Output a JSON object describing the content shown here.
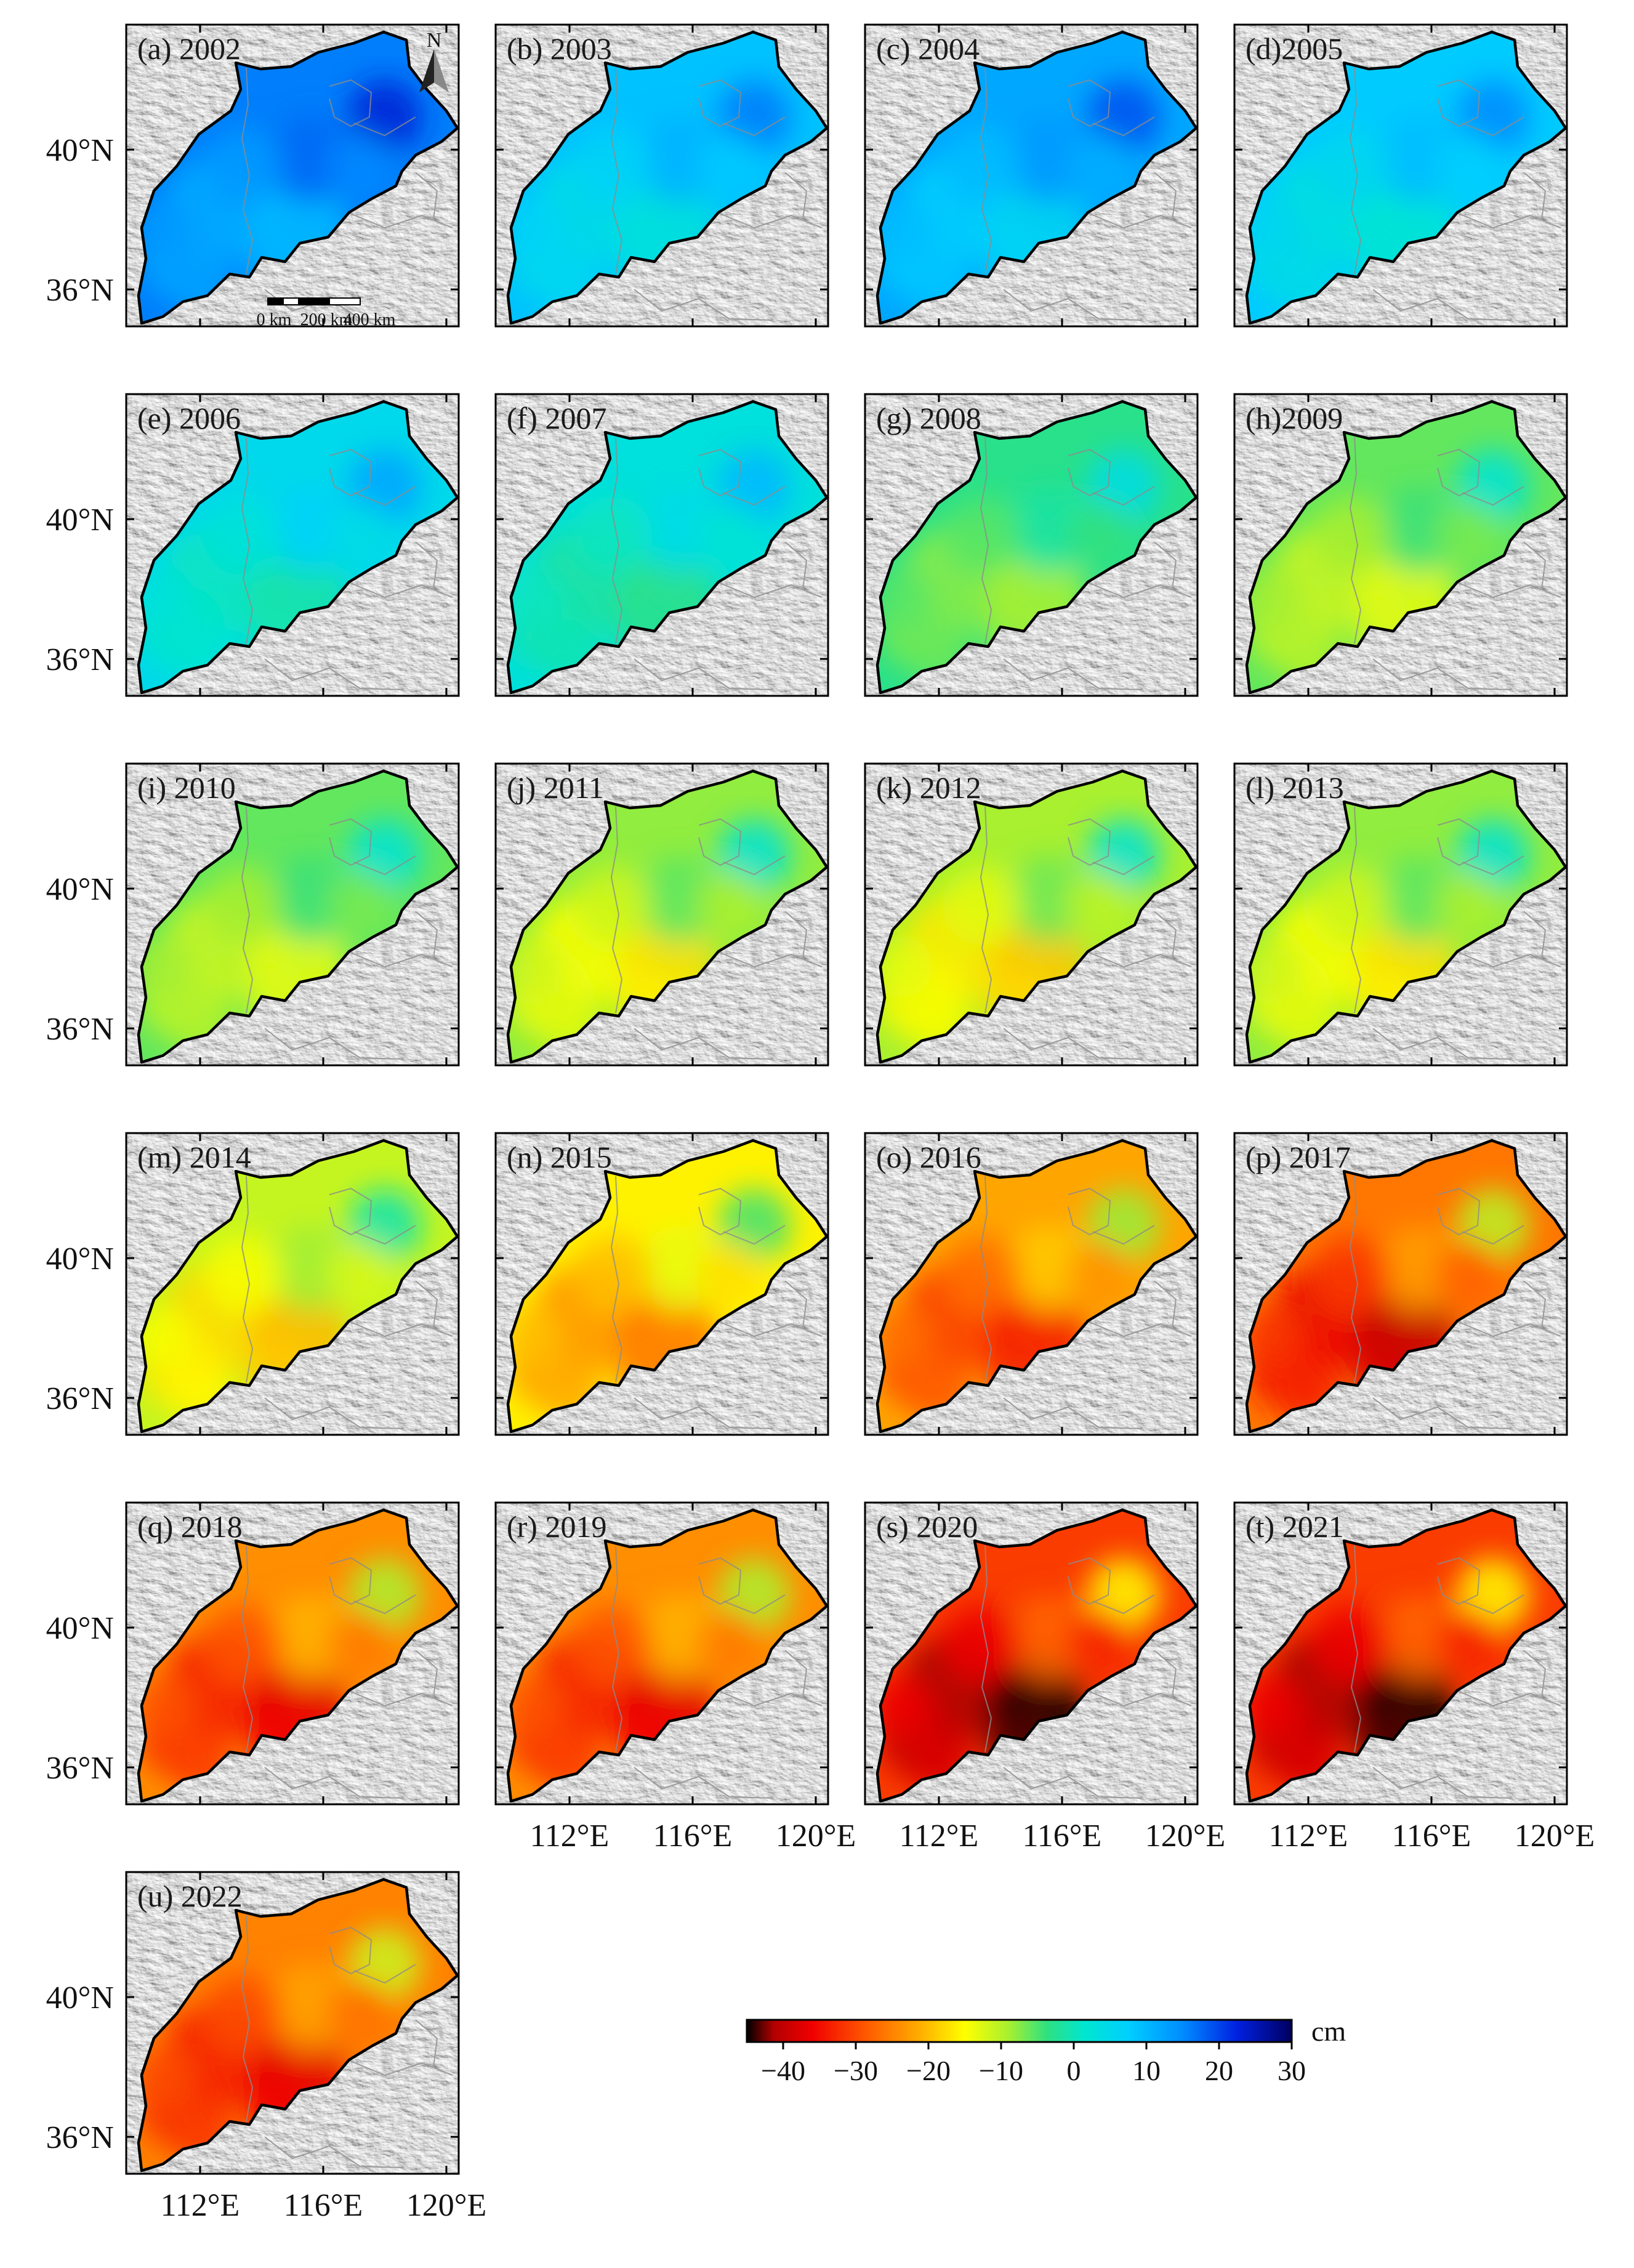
{
  "figure": {
    "panels": [
      {
        "label": "(a) 2002",
        "year": 2002,
        "mean_cm": 16,
        "warm_spots": 0
      },
      {
        "label": "(b) 2003",
        "year": 2003,
        "mean_cm": 9,
        "warm_spots": 0
      },
      {
        "label": "(c) 2004",
        "year": 2004,
        "mean_cm": 12,
        "warm_spots": 0
      },
      {
        "label": "(d)2005",
        "year": 2005,
        "mean_cm": 8,
        "warm_spots": 0
      },
      {
        "label": "(e) 2006",
        "year": 2006,
        "mean_cm": 5,
        "warm_spots": 0
      },
      {
        "label": "(f) 2007",
        "year": 2007,
        "mean_cm": 3,
        "warm_spots": 0
      },
      {
        "label": "(g) 2008",
        "year": 2008,
        "mean_cm": -3,
        "warm_spots": 0
      },
      {
        "label": "(h)2009",
        "year": 2009,
        "mean_cm": -6,
        "warm_spots": 0.1
      },
      {
        "label": "(i) 2010",
        "year": 2010,
        "mean_cm": -6,
        "warm_spots": 0.1
      },
      {
        "label": "(j) 2011",
        "year": 2011,
        "mean_cm": -8,
        "warm_spots": 0.3
      },
      {
        "label": "(k) 2012",
        "year": 2012,
        "mean_cm": -9,
        "warm_spots": 0.4
      },
      {
        "label": "(l) 2013",
        "year": 2013,
        "mean_cm": -8,
        "warm_spots": 0.3
      },
      {
        "label": "(m) 2014",
        "year": 2014,
        "mean_cm": -11,
        "warm_spots": 0.3
      },
      {
        "label": "(n) 2015",
        "year": 2015,
        "mean_cm": -16,
        "warm_spots": 0.4
      },
      {
        "label": "(o) 2016",
        "year": 2016,
        "mean_cm": -22,
        "warm_spots": 0.6
      },
      {
        "label": "(p) 2017",
        "year": 2017,
        "mean_cm": -26,
        "warm_spots": 0.8
      },
      {
        "label": "(q) 2018",
        "year": 2018,
        "mean_cm": -24,
        "warm_spots": 0.7
      },
      {
        "label": "(r) 2019",
        "year": 2019,
        "mean_cm": -24,
        "warm_spots": 0.7
      },
      {
        "label": "(s) 2020",
        "year": 2020,
        "mean_cm": -31,
        "warm_spots": 0.8
      },
      {
        "label": "(t) 2021",
        "year": 2021,
        "mean_cm": -31,
        "warm_spots": 0.8
      },
      {
        "label": "(u) 2022",
        "year": 2022,
        "mean_cm": -25,
        "warm_spots": 0.6
      }
    ],
    "lat_labels": [
      "40°N",
      "36°N"
    ],
    "lon_labels": [
      "112°E",
      "116°E",
      "120°E"
    ],
    "north_arrow": "N",
    "scale_bar": {
      "labels": [
        "0 km",
        "200 km",
        "400 km"
      ]
    },
    "colorbar": {
      "unit": "cm",
      "min": -45,
      "max": 30,
      "ticks": [
        "−40",
        "−30",
        "−20",
        "−10",
        "0",
        "10",
        "20",
        "30"
      ],
      "tick_values": [
        -40,
        -30,
        -20,
        -10,
        0,
        10,
        20,
        30
      ]
    }
  }
}
